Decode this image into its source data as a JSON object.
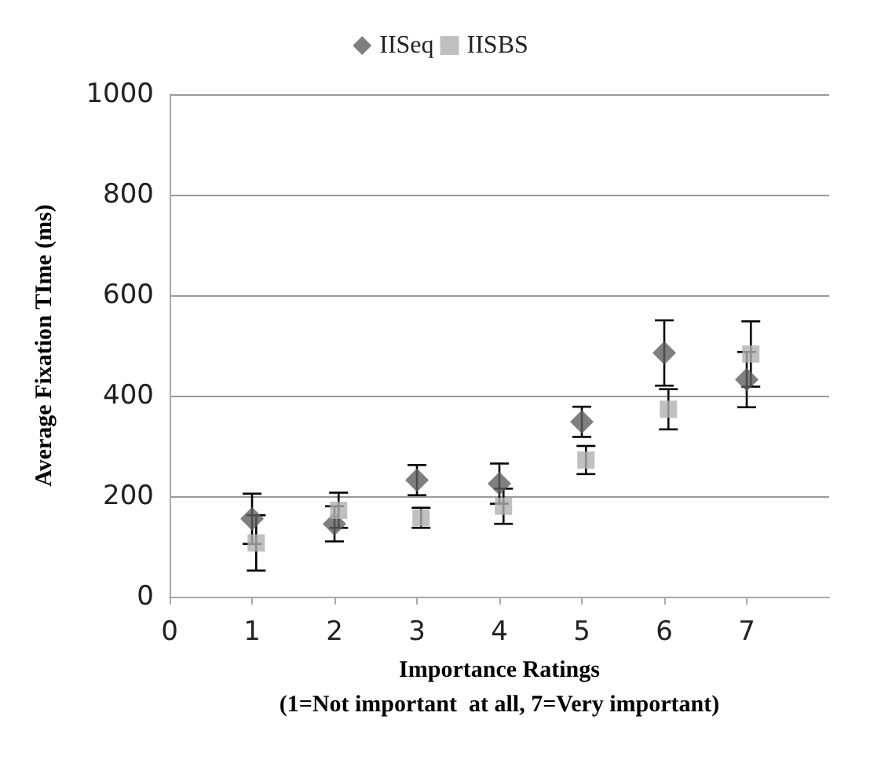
{
  "chart_data": {
    "type": "scatter",
    "ylabel": "Average Fixation TIme (ms)",
    "xlabel": "Importance Ratings\n(1=Not important  at all, 7=Very important)",
    "legend": "top",
    "grid": "y",
    "xlim": [
      0,
      8
    ],
    "xticks": [
      0,
      1,
      2,
      3,
      4,
      5,
      6,
      7
    ],
    "ylim": [
      0,
      1000
    ],
    "yticks": [
      0,
      200,
      400,
      600,
      800,
      1000
    ],
    "series": [
      {
        "name": "IISeq",
        "color": "#5f5f5f",
        "marker": "diamond",
        "x": [
          1,
          2,
          3,
          4,
          5,
          6,
          7
        ],
        "values": [
          155,
          145,
          232,
          225,
          348,
          485,
          432
        ],
        "errors": [
          50,
          35,
          30,
          40,
          30,
          65,
          55
        ]
      },
      {
        "name": "IISBS",
        "color": "#b0b0b0",
        "marker": "square",
        "x": [
          1.05,
          2.05,
          3.05,
          4.05,
          5.05,
          6.05,
          7.05
        ],
        "values": [
          107,
          172,
          157,
          180,
          272,
          373,
          483
        ],
        "errors": [
          55,
          35,
          20,
          35,
          28,
          40,
          65
        ]
      }
    ]
  }
}
